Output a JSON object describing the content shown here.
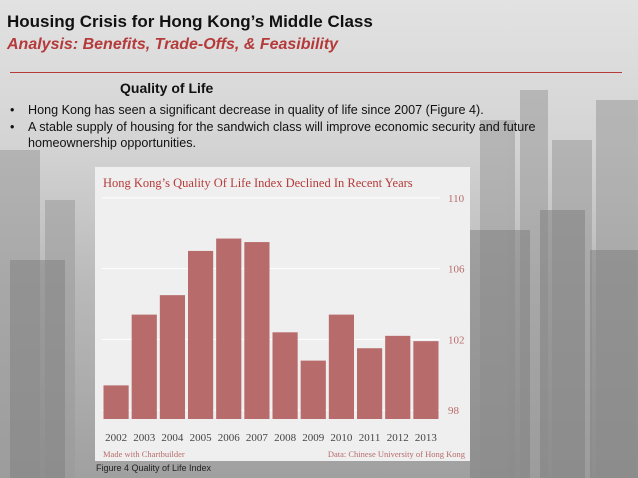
{
  "slide": {
    "title": "Housing Crisis for Hong Kong’s Middle Class",
    "subtitle": "Analysis: Benefits, Trade-Offs, & Feasibility",
    "section_heading": "Quality of Life",
    "bullets": [
      "Hong Kong has seen a significant decrease in quality of life since 2007 (Figure 4).",
      "A stable supply of housing for the sandwich class will improve economic security and future homeownership opportunities."
    ],
    "bullet_glyph": "•",
    "figure_caption": "Figure 4 Quality of Life Index"
  },
  "colors": {
    "accent": "#b53a3a",
    "bar": "#b86b6b",
    "card_bg": "#efefef",
    "grid": "#ffffff"
  },
  "chart_data": {
    "type": "bar",
    "title": "Hong Kong’s Quality Of Life Index Declined In Recent Years",
    "categories": [
      "2002",
      "2003",
      "2004",
      "2005",
      "2006",
      "2007",
      "2008",
      "2009",
      "2010",
      "2011",
      "2012",
      "2013"
    ],
    "values": [
      99.4,
      103.4,
      104.5,
      107.0,
      107.7,
      107.5,
      102.4,
      100.8,
      103.4,
      101.5,
      102.2,
      101.9
    ],
    "ylim": [
      97.5,
      110.5
    ],
    "yticks": [
      "98",
      "102",
      "106",
      "110"
    ],
    "ytick_values": [
      98,
      102,
      106,
      110
    ],
    "xlabel": "",
    "ylabel": "",
    "grid": true,
    "footer_left": "Made with Chartbuilder",
    "footer_right": "Data: Chinese University of Hong Kong"
  }
}
